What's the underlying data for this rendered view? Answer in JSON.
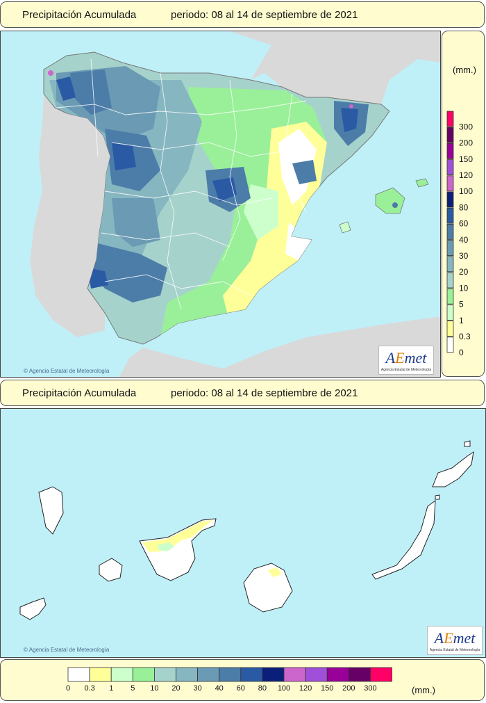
{
  "peninsula": {
    "title": "Precipitación Acumulada",
    "period": "periodo: 08 al 14 de septiembre de 2021",
    "credit": "Agencia Estatal de Meteorología",
    "logo": "AEmet",
    "logo_subtitle": "Agencia Estatal de Meteorología"
  },
  "canarias": {
    "title": "Precipitación Acumulada",
    "period": "periodo: 08 al 14 de septiembre de 2021",
    "credit": "Agencia Estatal de Meteorología",
    "logo": "AEmet",
    "logo_subtitle": "Agencia Estatal de Meteorología"
  },
  "legend": {
    "unit": "(mm.)",
    "classes": [
      {
        "value": "0",
        "color": "#ffffff"
      },
      {
        "value": "0.3",
        "color": "#ffff99"
      },
      {
        "value": "1",
        "color": "#ccffcc"
      },
      {
        "value": "5",
        "color": "#99f099"
      },
      {
        "value": "10",
        "color": "#a6d2cc"
      },
      {
        "value": "20",
        "color": "#86b6c0"
      },
      {
        "value": "30",
        "color": "#6b9ab4"
      },
      {
        "value": "40",
        "color": "#4c7ca8"
      },
      {
        "value": "60",
        "color": "#2a5aa4"
      },
      {
        "value": "80",
        "color": "#0b1f7a"
      },
      {
        "value": "100",
        "color": "#cc66cc"
      },
      {
        "value": "120",
        "color": "#a050d8"
      },
      {
        "value": "150",
        "color": "#990099"
      },
      {
        "value": "200",
        "color": "#660066"
      },
      {
        "value": "300",
        "color": "#ff0066"
      }
    ]
  },
  "colors": {
    "sea": "#bff0f8",
    "foreign_land": "#d9d9d9",
    "panel": "#fffdd0",
    "borders": "#ffffff"
  }
}
